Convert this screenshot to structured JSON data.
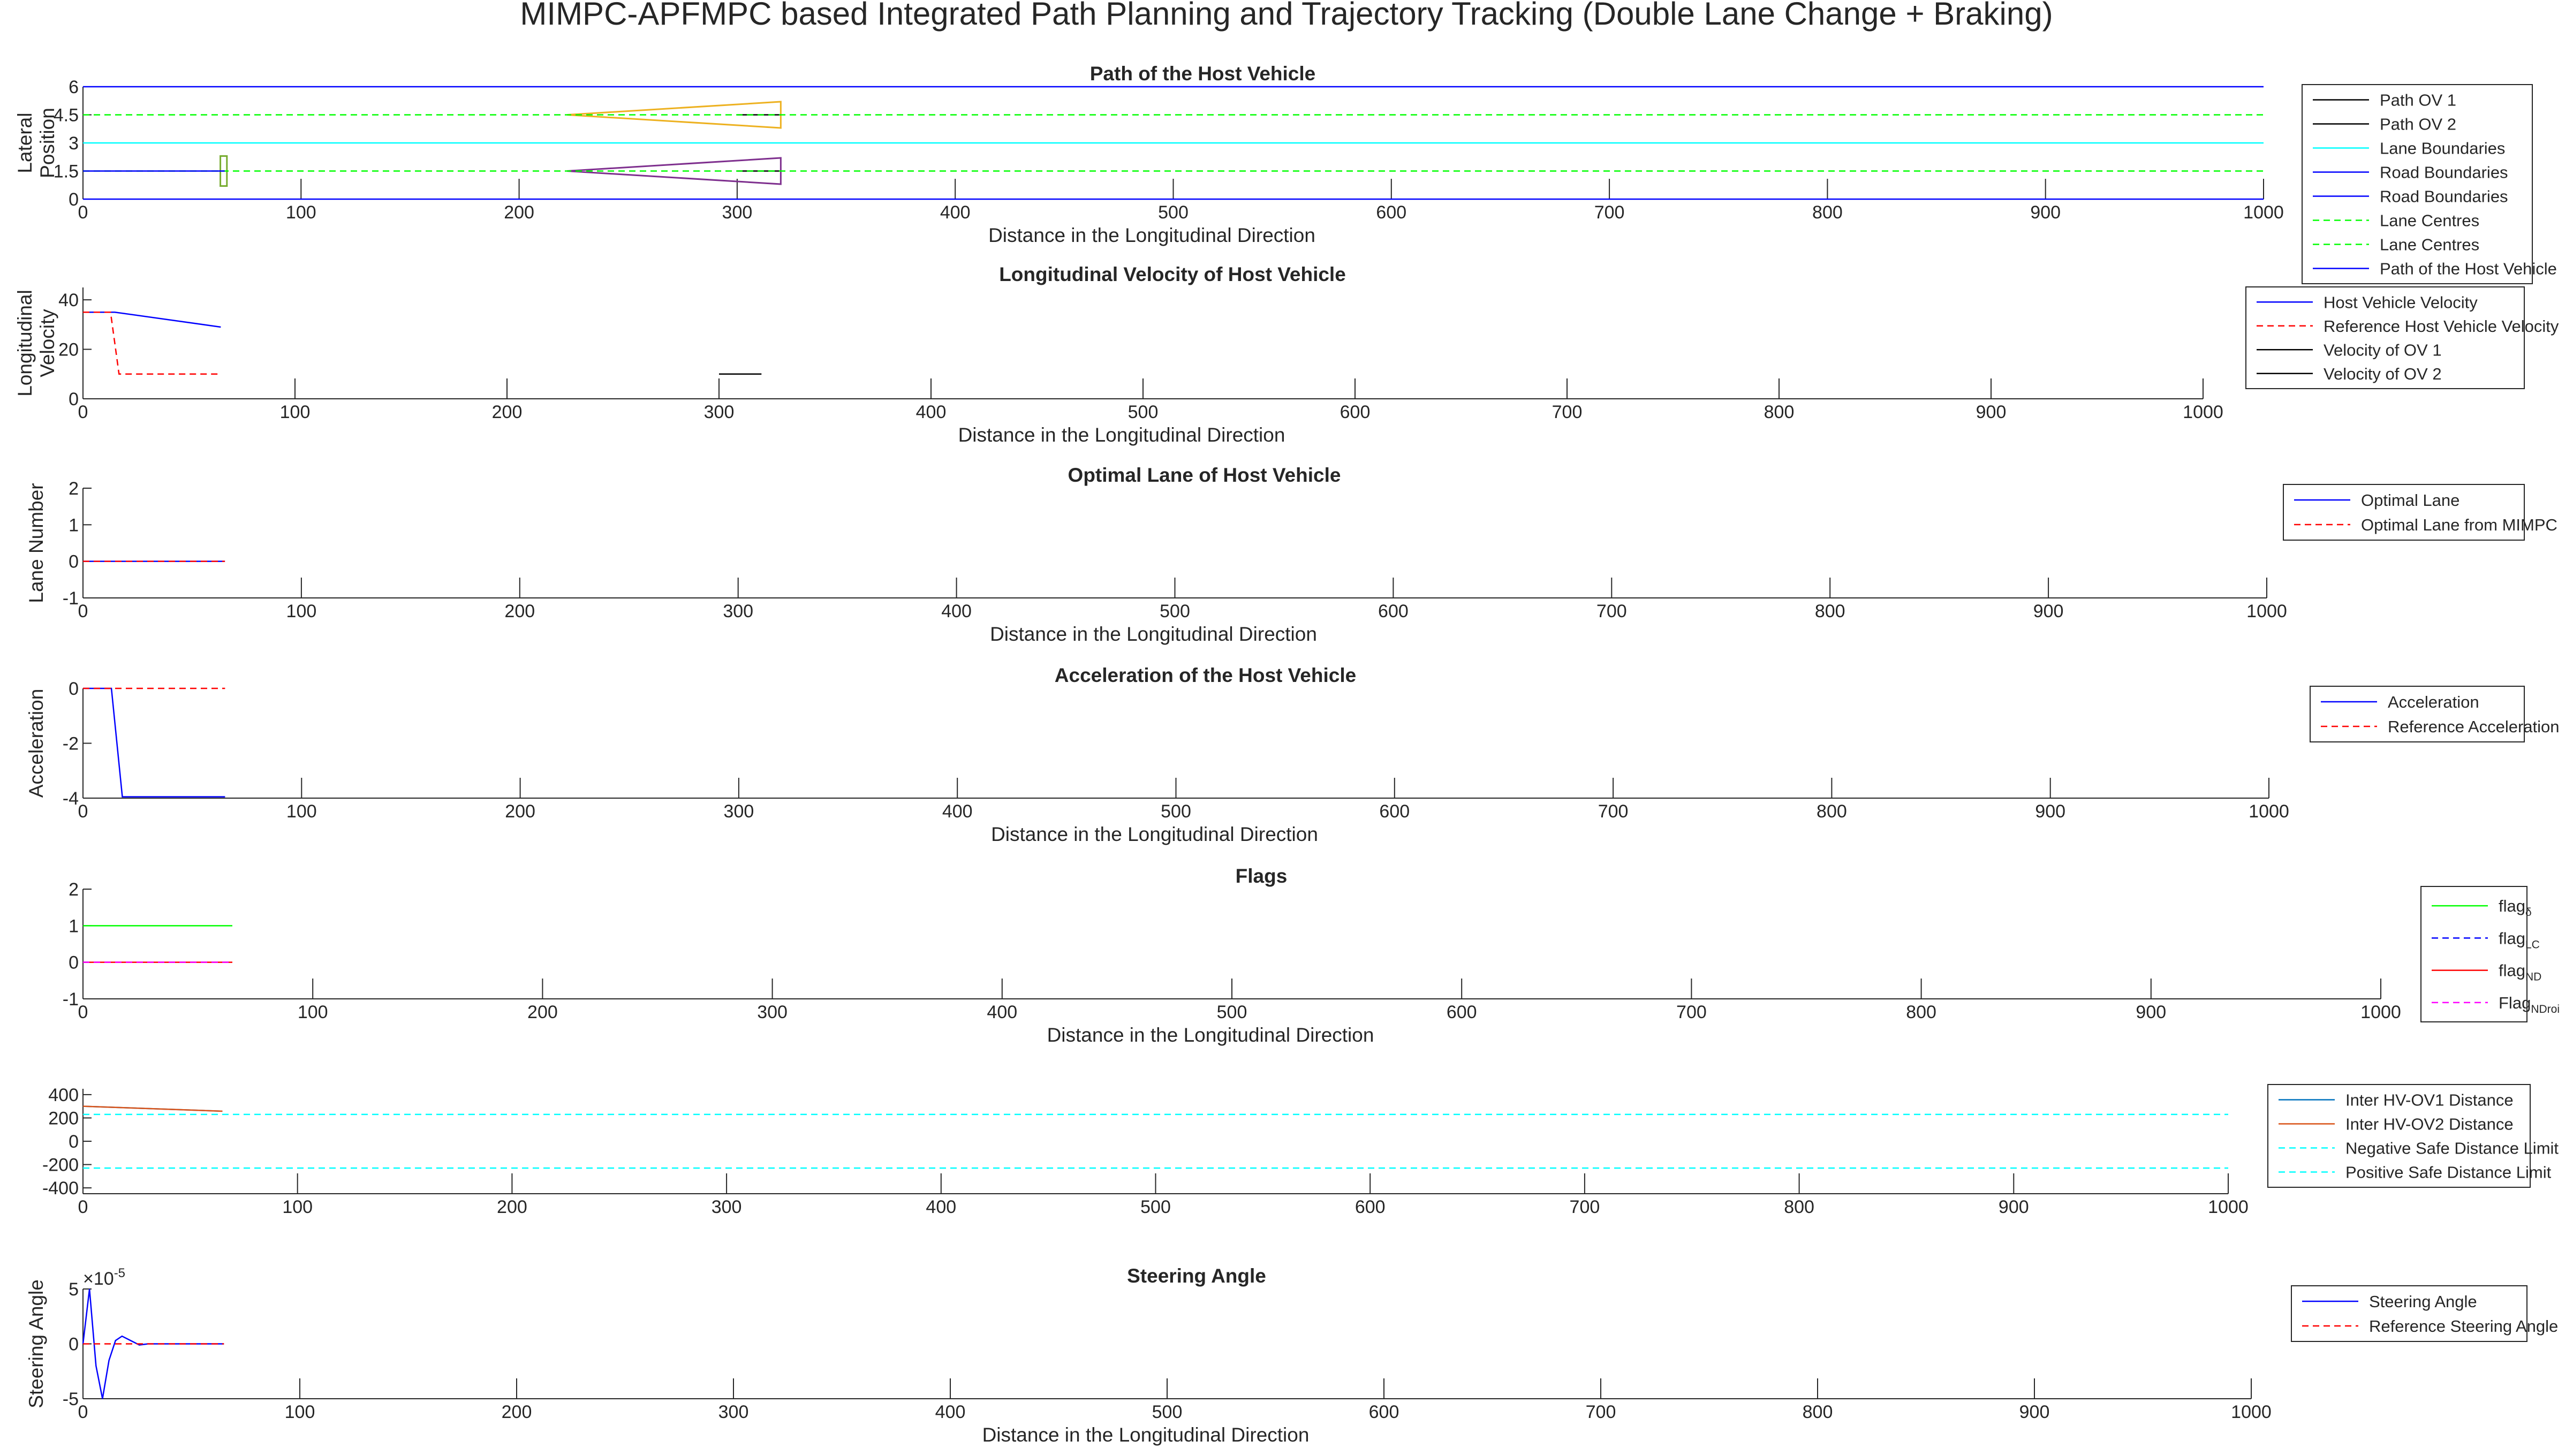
{
  "figure_title": "MIMPC-APFMPC based Integrated Path Planning and Trajectory Tracking (Double Lane Change + Braking)",
  "chart_data": [
    {
      "type": "line",
      "title": "Path of the Host Vehicle",
      "xlabel": "Distance in the Longitudinal Direction",
      "ylabel": [
        "Lateral",
        "Position"
      ],
      "xlim": [
        0,
        1000
      ],
      "ylim": [
        0,
        6
      ],
      "xticks": [
        "0",
        "100",
        "200",
        "300",
        "400",
        "500",
        "600",
        "700",
        "800",
        "900",
        "1000"
      ],
      "yticks": [
        "0",
        "1.5",
        "3",
        "4.5",
        "6"
      ],
      "legend_position": "right",
      "series": [
        {
          "name": "Path OV 1",
          "color": "#000000",
          "dash": "solid",
          "x": [
            300,
            320
          ],
          "y": [
            1.5,
            1.5
          ]
        },
        {
          "name": "Path OV 2",
          "color": "#000000",
          "dash": "solid",
          "x": [
            300,
            320
          ],
          "y": [
            4.5,
            4.5
          ]
        },
        {
          "name": "Lane Boundaries",
          "color": "#00ffff",
          "dash": "solid",
          "x": [
            0,
            1000
          ],
          "y": [
            3,
            3
          ]
        },
        {
          "name": "Road Boundaries",
          "color": "#0000ff",
          "dash": "solid",
          "x": [
            0,
            1000
          ],
          "y": [
            0,
            0
          ]
        },
        {
          "name": "Road Boundaries",
          "color": "#0000ff",
          "dash": "solid",
          "x": [
            0,
            1000
          ],
          "y": [
            6,
            6
          ]
        },
        {
          "name": "Lane Centres",
          "color": "#00ff00",
          "dash": "dash",
          "x": [
            0,
            1000
          ],
          "y": [
            1.5,
            1.5
          ]
        },
        {
          "name": "Lane Centres",
          "color": "#00ff00",
          "dash": "dash",
          "x": [
            0,
            1000
          ],
          "y": [
            4.5,
            4.5
          ]
        },
        {
          "name": "Path of the Host Vehicle",
          "color": "#0000ff",
          "dash": "solid",
          "x": [
            0,
            65
          ],
          "y": [
            1.5,
            1.5
          ]
        }
      ],
      "overlays": [
        {
          "kind": "polygon",
          "color": "#edb120",
          "x": [
            222,
            320,
            320,
            222
          ],
          "y": [
            4.5,
            5.2,
            3.8,
            4.5
          ]
        },
        {
          "kind": "polygon",
          "color": "#7e2f8e",
          "x": [
            222,
            320,
            320,
            222
          ],
          "y": [
            1.5,
            2.2,
            0.8,
            1.5
          ]
        },
        {
          "kind": "polygon",
          "color": "#77ac30",
          "x": [
            63,
            66,
            66,
            63
          ],
          "y": [
            2.3,
            2.3,
            0.7,
            0.7
          ]
        }
      ]
    },
    {
      "type": "line",
      "title": "Longitudinal Velocity of Host Vehicle",
      "xlabel": "Distance in the Longitudinal Direction",
      "ylabel": [
        "Longitudinal",
        "Velocity"
      ],
      "xlim": [
        0,
        1000
      ],
      "ylim": [
        0,
        45
      ],
      "xticks": [
        "0",
        "100",
        "200",
        "300",
        "400",
        "500",
        "600",
        "700",
        "800",
        "900",
        "1000"
      ],
      "yticks": [
        "0",
        "20",
        "40"
      ],
      "legend_position": "right",
      "series": [
        {
          "name": "Host Vehicle Velocity",
          "color": "#0000ff",
          "dash": "solid",
          "x": [
            0,
            15,
            65
          ],
          "y": [
            35,
            35,
            29
          ]
        },
        {
          "name": "Reference Host Vehicle Velocity",
          "color": "#ff0000",
          "dash": "dash",
          "x": [
            0,
            13,
            17,
            65
          ],
          "y": [
            35,
            35,
            10,
            10
          ]
        },
        {
          "name": "Velocity of OV 1",
          "color": "#000000",
          "dash": "solid",
          "x": [
            300,
            320
          ],
          "y": [
            10,
            10
          ]
        },
        {
          "name": "Velocity of OV 2",
          "color": "#000000",
          "dash": "solid",
          "x": [
            300,
            320
          ],
          "y": [
            10,
            10
          ]
        }
      ]
    },
    {
      "type": "line",
      "title": "Optimal Lane of Host Vehicle",
      "xlabel": "Distance in the Longitudinal Direction",
      "ylabel": [
        "Lane Number"
      ],
      "xlim": [
        0,
        1000
      ],
      "ylim": [
        -1,
        2
      ],
      "xticks": [
        "0",
        "100",
        "200",
        "300",
        "400",
        "500",
        "600",
        "700",
        "800",
        "900",
        "1000"
      ],
      "yticks": [
        "-1",
        "0",
        "1",
        "2"
      ],
      "legend_position": "right",
      "series": [
        {
          "name": "Optimal Lane",
          "color": "#0000ff",
          "dash": "solid",
          "x": [
            0,
            65
          ],
          "y": [
            0,
            0
          ]
        },
        {
          "name": "Optimal Lane from MIMPC",
          "color": "#ff0000",
          "dash": "dash",
          "x": [
            0,
            65
          ],
          "y": [
            0,
            0
          ]
        }
      ]
    },
    {
      "type": "line",
      "title": "Acceleration of the Host Vehicle",
      "xlabel": "Distance in the Longitudinal Direction",
      "ylabel": [
        "Acceleration"
      ],
      "xlim": [
        0,
        1000
      ],
      "ylim": [
        -4,
        0
      ],
      "xticks": [
        "0",
        "100",
        "200",
        "300",
        "400",
        "500",
        "600",
        "700",
        "800",
        "900",
        "1000"
      ],
      "yticks": [
        "-4",
        "-2",
        "0"
      ],
      "legend_position": "right",
      "series": [
        {
          "name": "Acceleration",
          "color": "#0000ff",
          "dash": "solid",
          "x": [
            0,
            13,
            18,
            65
          ],
          "y": [
            0,
            0,
            -3.95,
            -3.95
          ]
        },
        {
          "name": "Reference Acceleration",
          "color": "#ff0000",
          "dash": "dash",
          "x": [
            0,
            65
          ],
          "y": [
            0,
            0
          ]
        }
      ]
    },
    {
      "type": "line",
      "title": "Flags",
      "xlabel": "Distance in the Longitudinal Direction",
      "ylabel": [],
      "xlim": [
        0,
        1000
      ],
      "ylim": [
        -1,
        2
      ],
      "xticks": [
        "0",
        "100",
        "200",
        "300",
        "400",
        "500",
        "600",
        "700",
        "800",
        "900",
        "1000"
      ],
      "yticks": [
        "-1",
        "0",
        "1",
        "2"
      ],
      "legend_position": "right",
      "series": [
        {
          "name": "flag",
          "sub": "δ",
          "color": "#00ff00",
          "dash": "solid",
          "x": [
            0,
            65
          ],
          "y": [
            1,
            1
          ]
        },
        {
          "name": "flag",
          "sub": "LC",
          "color": "#0000ff",
          "dash": "dash",
          "x": [
            0,
            65
          ],
          "y": [
            0,
            0
          ]
        },
        {
          "name": "flag",
          "sub": "ND",
          "color": "#ff0000",
          "dash": "solid",
          "x": [
            0,
            65
          ],
          "y": [
            0,
            0
          ]
        },
        {
          "name": "Flag",
          "sub": "NDroi",
          "color": "#ff00ff",
          "dash": "dash",
          "x": [
            0,
            65
          ],
          "y": [
            0,
            0
          ]
        }
      ]
    },
    {
      "type": "line",
      "title": "",
      "xlabel": "",
      "ylabel": [],
      "xlim": [
        0,
        1000
      ],
      "ylim": [
        -450,
        450
      ],
      "xticks": [
        "0",
        "100",
        "200",
        "300",
        "400",
        "500",
        "600",
        "700",
        "800",
        "900",
        "1000"
      ],
      "yticks": [
        "-400",
        "-200",
        "0",
        "200",
        "400"
      ],
      "legend_position": "right",
      "series": [
        {
          "name": "Inter HV-OV1 Distance",
          "color": "#0072bd",
          "dash": "solid",
          "x": [
            0,
            65
          ],
          "y": [
            300,
            258
          ]
        },
        {
          "name": "Inter HV-OV2 Distance",
          "color": "#d95319",
          "dash": "solid",
          "x": [
            0,
            65
          ],
          "y": [
            300,
            258
          ]
        },
        {
          "name": "Negative Safe Distance Limit",
          "color": "#00ffff",
          "dash": "dash",
          "x": [
            0,
            1000
          ],
          "y": [
            -230,
            -230
          ]
        },
        {
          "name": "Positive Safe Distance Limit",
          "color": "#00ffff",
          "dash": "dash",
          "x": [
            0,
            1000
          ],
          "y": [
            230,
            230
          ]
        }
      ]
    },
    {
      "type": "line",
      "title": "Steering Angle",
      "xlabel": "Distance in the Longitudinal Direction",
      "ylabel": [
        "Steering Angle"
      ],
      "exponent_base": "×10",
      "exponent_power": "-5",
      "xlim": [
        0,
        1000
      ],
      "ylim": [
        -5,
        5
      ],
      "xticks": [
        "0",
        "100",
        "200",
        "300",
        "400",
        "500",
        "600",
        "700",
        "800",
        "900",
        "1000"
      ],
      "yticks": [
        "-5",
        "0",
        "5"
      ],
      "legend_position": "right",
      "series": [
        {
          "name": "Steering Angle",
          "color": "#0000ff",
          "dash": "solid",
          "x": [
            0,
            3,
            6,
            9,
            12,
            15,
            18,
            22,
            26,
            30,
            65
          ],
          "y": [
            0,
            5,
            -2,
            -5,
            -1.5,
            0.3,
            0.7,
            0.3,
            -0.1,
            0,
            0
          ]
        },
        {
          "name": "Reference Steering Angle",
          "color": "#ff0000",
          "dash": "dash",
          "x": [
            0,
            65
          ],
          "y": [
            0,
            0
          ]
        }
      ]
    }
  ]
}
